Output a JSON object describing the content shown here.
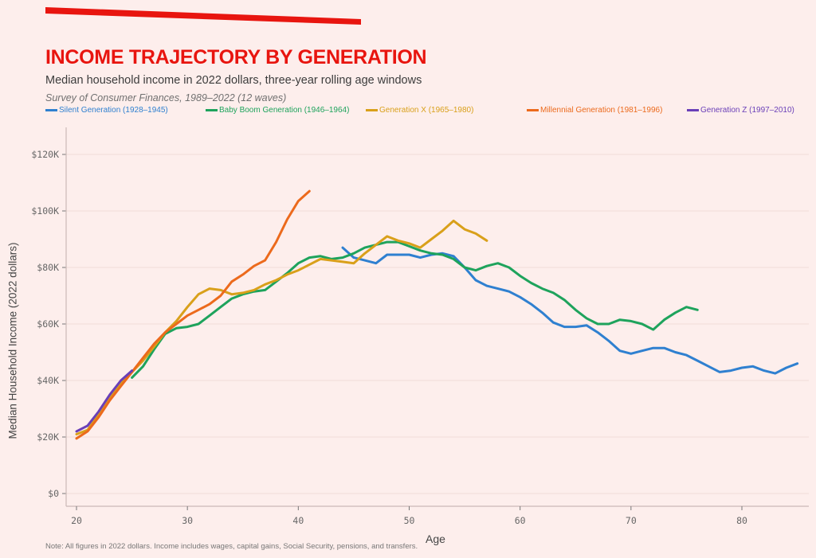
{
  "header": {
    "title": "INCOME TRAJECTORY BY GENERATION",
    "subtitle": "Median household income in 2022 dollars, three-year rolling age windows",
    "source": "Survey of Consumer Finances, 1989–2022 (12 waves)"
  },
  "footer": {
    "note": "Note: All figures in 2022 dollars. Income includes wages, capital gains, Social Security, pensions, and transfers."
  },
  "colors": {
    "accent": "#e8150f",
    "background": "#fdeeec"
  },
  "chart_data": {
    "type": "line",
    "title": "INCOME TRAJECTORY BY GENERATION",
    "xlabel": "Age",
    "ylabel": "Median Household Income (2022 dollars)",
    "xlim": [
      19,
      86
    ],
    "ylim": [
      -4,
      128
    ],
    "xticks": [
      20,
      30,
      40,
      50,
      60,
      70,
      80
    ],
    "xtick_labels": [
      "20",
      "30",
      "40",
      "50",
      "60",
      "70",
      "80"
    ],
    "yticks": [
      0,
      20,
      40,
      60,
      80,
      100,
      120
    ],
    "ytick_labels": [
      "$0",
      "$20K",
      "$40K",
      "$60K",
      "$80K",
      "$100K",
      "$120K"
    ],
    "y_units": "thousands of 2022 dollars",
    "grid": "horizontal",
    "legend_position": "top",
    "series": [
      {
        "name": "Silent Generation (1928–1945)",
        "color": "#2f80d0",
        "x": [
          44,
          45,
          46,
          47,
          48,
          49,
          50,
          51,
          52,
          53,
          54,
          55,
          56,
          57,
          58,
          59,
          60,
          61,
          62,
          63,
          64,
          65,
          66,
          67,
          68,
          69,
          70,
          71,
          72,
          73,
          74,
          75,
          76,
          77,
          78,
          79,
          80,
          81,
          82,
          83,
          84,
          85
        ],
        "values": [
          87,
          83.5,
          82.5,
          81.5,
          84.5,
          84.5,
          84.5,
          83.5,
          84.5,
          85,
          84,
          80,
          75.5,
          73.5,
          72.5,
          71.5,
          69.5,
          67,
          64,
          60.5,
          59,
          59,
          59.5,
          57,
          54,
          50.5,
          49.5,
          50.5,
          51.5,
          51.5,
          50,
          49,
          47,
          45,
          43,
          43.5,
          44.5,
          45,
          43.5,
          42.5,
          44.5,
          46
        ]
      },
      {
        "name": "Baby Boom Generation (1946–1964)",
        "color": "#1ea35c",
        "x": [
          25,
          26,
          27,
          28,
          29,
          30,
          31,
          32,
          33,
          34,
          35,
          36,
          37,
          38,
          39,
          40,
          41,
          42,
          43,
          44,
          45,
          46,
          47,
          48,
          49,
          50,
          51,
          52,
          53,
          54,
          55,
          56,
          57,
          58,
          59,
          60,
          61,
          62,
          63,
          64,
          65,
          66,
          67,
          68,
          69,
          70,
          71,
          72,
          73,
          74,
          75,
          76
        ],
        "values": [
          41,
          45,
          51,
          56.5,
          58.5,
          59,
          60,
          63,
          66,
          69,
          70.5,
          71.5,
          72,
          75,
          78,
          81.5,
          83.5,
          84,
          83,
          83.5,
          85,
          87,
          88,
          89,
          89,
          87.5,
          86,
          85,
          84.5,
          83,
          80,
          79,
          80.5,
          81.5,
          80,
          77,
          74.5,
          72.5,
          71,
          68.5,
          65,
          62,
          60,
          60,
          61.5,
          61,
          60,
          58,
          61.5,
          64,
          66,
          65
        ]
      },
      {
        "name": "Generation X (1965–1980)",
        "color": "#d9a01a",
        "x": [
          20,
          21,
          22,
          23,
          24,
          25,
          26,
          27,
          28,
          29,
          30,
          31,
          32,
          33,
          34,
          35,
          36,
          37,
          38,
          39,
          40,
          41,
          42,
          43,
          44,
          45,
          46,
          47,
          48,
          49,
          50,
          51,
          52,
          53,
          54,
          55,
          56,
          57
        ],
        "values": [
          21,
          22.5,
          28,
          34,
          39,
          43,
          47,
          52,
          57,
          61,
          66,
          70.5,
          72.5,
          72,
          70.5,
          71,
          72,
          74,
          75.5,
          77.5,
          79,
          81,
          83,
          82.5,
          82,
          81.5,
          85,
          88,
          91,
          89.5,
          88.5,
          87,
          90,
          93,
          96.5,
          93.5,
          92,
          89.5
        ]
      },
      {
        "name": "Millennial Generation (1981–1996)",
        "color": "#ec6a1c",
        "x": [
          20,
          21,
          22,
          23,
          24,
          25,
          26,
          27,
          28,
          29,
          30,
          31,
          32,
          33,
          34,
          35,
          36,
          37,
          38,
          39,
          40,
          41
        ],
        "values": [
          19.5,
          22,
          27,
          33,
          38,
          43,
          48,
          53,
          57,
          60,
          63,
          65,
          67,
          70,
          75,
          77.5,
          80.5,
          82.5,
          89,
          97,
          103.5,
          107
        ]
      },
      {
        "name": "Generation Z (1997–2010)",
        "color": "#6a3fb8",
        "x": [
          20,
          21,
          22,
          23,
          24,
          25
        ],
        "values": [
          22,
          24,
          29,
          35,
          40,
          43.5
        ]
      }
    ]
  }
}
